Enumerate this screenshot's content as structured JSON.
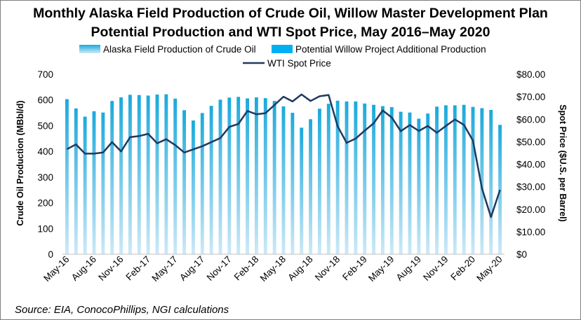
{
  "colors": {
    "alaska_top": "#1aa9dc",
    "alaska_bottom": "#cde9f7",
    "willow": "#00b0f0",
    "wti": "#1f3a5f"
  },
  "chart_data": {
    "type": "bar",
    "title_lines": [
      "Monthly Alaska Field Production of Crude Oil, Willow Master Development Plan",
      "Potential Production and WTI Spot Price, May 2016–May 2020"
    ],
    "legend": {
      "alaska": "Alaska Field Production of Crude Oil",
      "willow": "Potential Willow Project Additional Production",
      "wti": "WTI Spot Price"
    },
    "ylabel": "Crude Oil Production (MBbl/d)",
    "y2label": "Spot Price ($U.S. per Barrel)",
    "ylim": [
      0,
      700
    ],
    "y2lim": [
      0,
      80
    ],
    "yticks": [
      "0",
      "100",
      "200",
      "300",
      "400",
      "500",
      "600",
      "700"
    ],
    "y2ticks": [
      "$0",
      "$10.00",
      "$20.00",
      "$30.00",
      "$40.00",
      "$50.00",
      "$60.00",
      "$70.00",
      "$80.00"
    ],
    "xtick_labels": [
      "May-16",
      "Aug-16",
      "Nov-16",
      "Feb-17",
      "May-17",
      "Aug-17",
      "Nov-17",
      "Feb-18",
      "May-18",
      "Aug-18",
      "Nov-18",
      "Feb-19",
      "May-19",
      "Aug-19",
      "Nov-19",
      "Feb-20",
      "May-20"
    ],
    "categories": [
      "May-16",
      "Jun-16",
      "Jul-16",
      "Aug-16",
      "Sep-16",
      "Oct-16",
      "Nov-16",
      "Dec-16",
      "Jan-17",
      "Feb-17",
      "Mar-17",
      "Apr-17",
      "May-17",
      "Jun-17",
      "Jul-17",
      "Aug-17",
      "Sep-17",
      "Oct-17",
      "Nov-17",
      "Dec-17",
      "Jan-18",
      "Feb-18",
      "Mar-18",
      "Apr-18",
      "May-18",
      "Jun-18",
      "Jul-18",
      "Aug-18",
      "Sep-18",
      "Oct-18",
      "Nov-18",
      "Dec-18",
      "Jan-19",
      "Feb-19",
      "Mar-19",
      "Apr-19",
      "May-19",
      "Jun-19",
      "Jul-19",
      "Aug-19",
      "Sep-19",
      "Oct-19",
      "Nov-19",
      "Dec-19",
      "Jan-20",
      "Feb-20",
      "Mar-20",
      "Apr-20",
      "May-20"
    ],
    "series": [
      {
        "name": "Alaska Field Production of Crude Oil",
        "type": "bar",
        "axis": "left",
        "values": [
          603,
          567,
          535,
          556,
          551,
          596,
          610,
          620,
          619,
          617,
          621,
          622,
          605,
          560,
          520,
          549,
          577,
          601,
          609,
          612,
          606,
          610,
          607,
          596,
          575,
          550,
          492,
          525,
          566,
          585,
          597,
          594,
          594,
          586,
          581,
          576,
          572,
          554,
          551,
          527,
          547,
          574,
          579,
          579,
          581,
          573,
          568,
          561,
          503
        ]
      },
      {
        "name": "Potential Willow Project Additional Production",
        "type": "bar",
        "axis": "left",
        "values": [
          0,
          0,
          0,
          0,
          0,
          0,
          0,
          0,
          0,
          0,
          0,
          0,
          0,
          0,
          0,
          0,
          0,
          0,
          0,
          0,
          0,
          0,
          0,
          0,
          0,
          0,
          0,
          0,
          0,
          0,
          0,
          0,
          0,
          0,
          0,
          0,
          0,
          0,
          0,
          0,
          0,
          0,
          0,
          0,
          0,
          0,
          0,
          0,
          0
        ]
      },
      {
        "name": "WTI Spot Price",
        "type": "line",
        "axis": "right",
        "values": [
          46.7,
          48.8,
          44.7,
          44.7,
          45.2,
          49.8,
          45.7,
          52.0,
          52.5,
          53.5,
          49.3,
          51.1,
          48.5,
          45.2,
          46.6,
          48.0,
          49.8,
          51.6,
          56.6,
          57.9,
          63.7,
          62.2,
          62.7,
          66.3,
          70.0,
          67.9,
          71.0,
          68.1,
          70.2,
          70.8,
          56.9,
          49.5,
          51.4,
          54.9,
          58.2,
          63.9,
          60.8,
          54.7,
          57.4,
          54.8,
          57.0,
          54.0,
          57.0,
          59.9,
          57.5,
          50.5,
          29.2,
          16.5,
          28.6
        ]
      }
    ],
    "source": "Source: EIA, ConocoPhillips, NGI calculations"
  }
}
